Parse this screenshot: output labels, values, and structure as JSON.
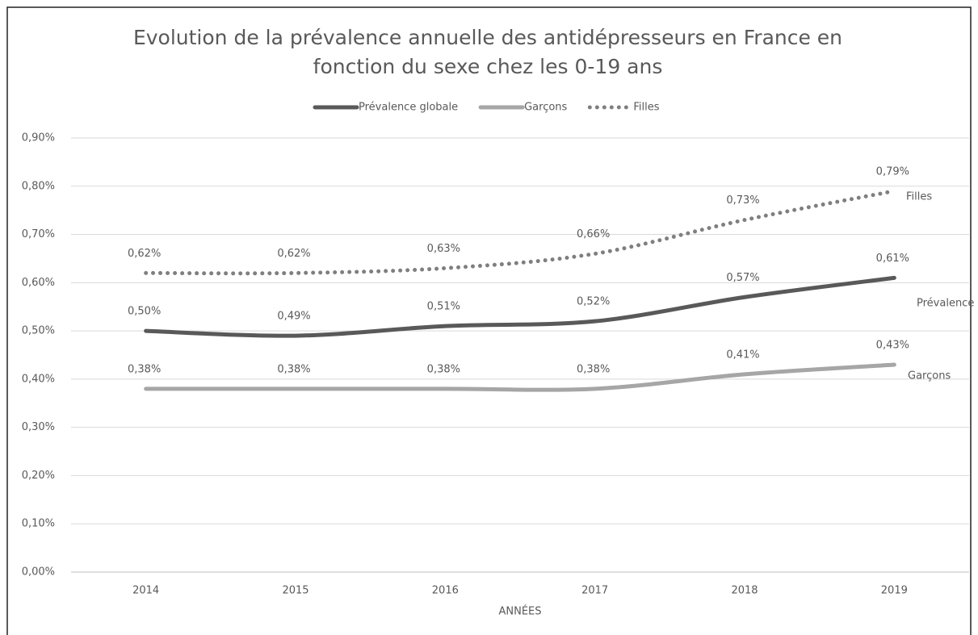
{
  "chart_data": {
    "type": "line",
    "title": "Evolution de la prévalence annuelle des antidépresseurs en France en fonction du sexe chez les 0-19 ans",
    "xlabel": "ANNÉES",
    "categories": [
      "2014",
      "2015",
      "2016",
      "2017",
      "2018",
      "2019"
    ],
    "series": [
      {
        "name": "Prévalence globale",
        "color": "#595959",
        "style": "solid",
        "values": [
          0.5,
          0.49,
          0.51,
          0.52,
          0.57,
          0.61
        ],
        "value_labels": [
          "0,50%",
          "0,49%",
          "0,51%",
          "0,52%",
          "0,57%",
          "0,61%"
        ]
      },
      {
        "name": "Garçons",
        "color": "#a6a6a6",
        "style": "solid",
        "values": [
          0.38,
          0.38,
          0.38,
          0.38,
          0.41,
          0.43
        ],
        "value_labels": [
          "0,38%",
          "0,38%",
          "0,38%",
          "0,38%",
          "0,41%",
          "0,43%"
        ]
      },
      {
        "name": "Filles",
        "color": "#7f7f7f",
        "style": "dotted",
        "values": [
          0.62,
          0.62,
          0.63,
          0.66,
          0.73,
          0.79
        ],
        "value_labels": [
          "0,62%",
          "0,62%",
          "0,63%",
          "0,66%",
          "0,73%",
          "0,79%"
        ]
      }
    ],
    "ylim": [
      0,
      0.9
    ],
    "yticks": [
      {
        "value": 0,
        "label": "0,00%"
      },
      {
        "value": 0.1,
        "label": "0,10%"
      },
      {
        "value": 0.2,
        "label": "0,20%"
      },
      {
        "value": 0.3,
        "label": "0,30%"
      },
      {
        "value": 0.4,
        "label": "0,40%"
      },
      {
        "value": 0.5,
        "label": "0,50%"
      },
      {
        "value": 0.6,
        "label": "0,60%"
      },
      {
        "value": 0.7,
        "label": "0,70%"
      },
      {
        "value": 0.8,
        "label": "0,80%"
      },
      {
        "value": 0.9,
        "label": "0,90%"
      }
    ],
    "grid": true,
    "legend": "top"
  }
}
